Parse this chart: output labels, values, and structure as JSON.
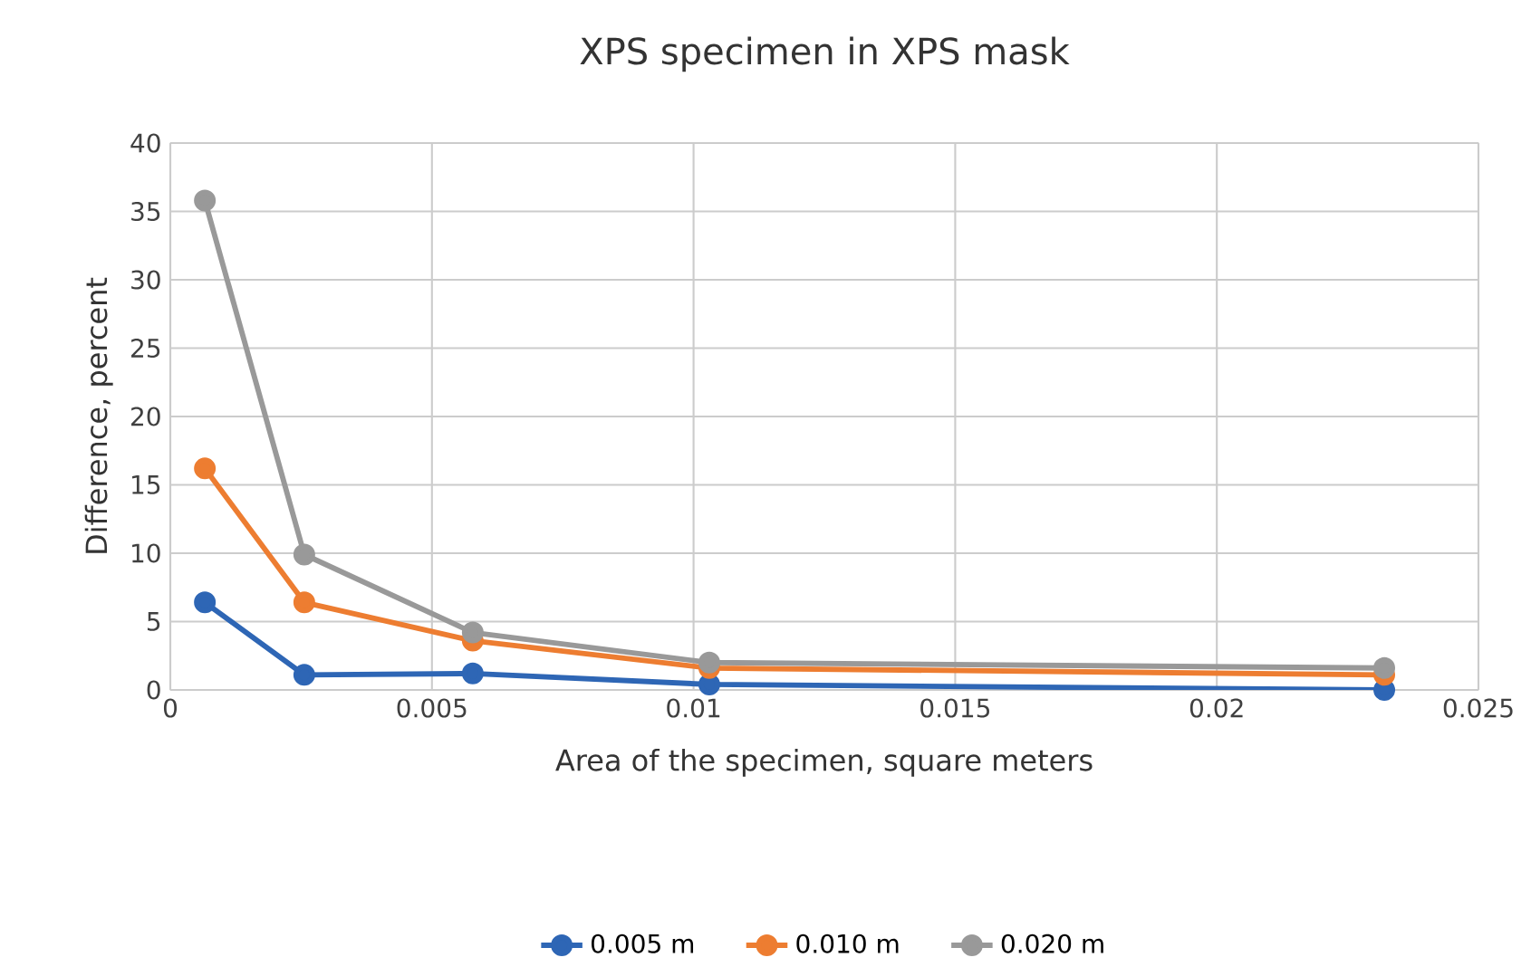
{
  "chart_data": {
    "type": "line",
    "title": "XPS specimen in XPS mask",
    "xlabel": "Area of the specimen, square meters",
    "ylabel": "Difference, percent",
    "x": [
      0.00066,
      0.00256,
      0.00578,
      0.0103,
      0.0232
    ],
    "series": [
      {
        "name": "0.005 m",
        "color": "#2e66b5",
        "values": [
          6.4,
          1.1,
          1.2,
          0.4,
          0
        ]
      },
      {
        "name": "0.010 m",
        "color": "#ed7d31",
        "values": [
          16.2,
          6.4,
          3.6,
          1.6,
          1.1
        ]
      },
      {
        "name": "0.020 m",
        "color": "#999999",
        "values": [
          35.8,
          9.9,
          4.2,
          2.0,
          1.6
        ]
      }
    ],
    "xlim": [
      0,
      0.025
    ],
    "xticks": [
      0,
      0.005,
      0.01,
      0.015,
      0.02,
      0.025
    ],
    "ylim": [
      0,
      40
    ],
    "yticks": [
      0,
      5,
      10,
      15,
      20,
      25,
      30,
      35,
      40
    ],
    "grid": true,
    "legend": "bottom",
    "marker": "circle",
    "line_style": "solid"
  }
}
